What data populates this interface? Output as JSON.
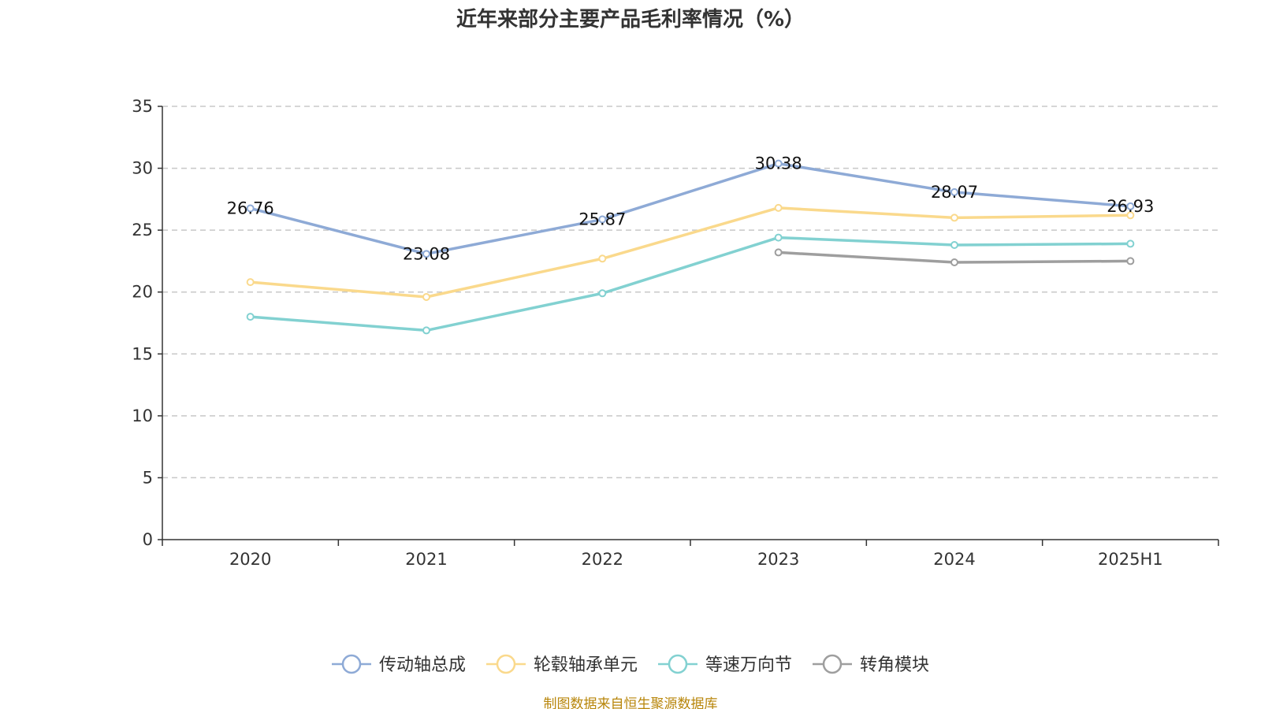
{
  "chart_data": {
    "type": "line",
    "title": "近年来部分主要产品毛利率情况（%）",
    "xlabel": "",
    "ylabel": "",
    "categories": [
      "2020",
      "2021",
      "2022",
      "2023",
      "2024",
      "2025H1"
    ],
    "ylim": [
      0,
      35
    ],
    "yticks": [
      0,
      5,
      10,
      15,
      20,
      25,
      30,
      35
    ],
    "grid": true,
    "legend_position": "bottom",
    "series": [
      {
        "name": "传动轴总成",
        "color": "#8eaad6",
        "values": [
          26.76,
          23.08,
          25.87,
          30.38,
          28.07,
          26.93
        ],
        "labels": [
          "26.76",
          "23.08",
          "25.87",
          "30.38",
          "28.07",
          "26.93"
        ]
      },
      {
        "name": "轮毂轴承单元",
        "color": "#fad98c",
        "values": [
          20.8,
          19.6,
          22.7,
          26.8,
          26.0,
          26.2
        ]
      },
      {
        "name": "等速万向节",
        "color": "#82d1d1",
        "values": [
          18.0,
          16.9,
          19.9,
          24.4,
          23.8,
          23.9
        ]
      },
      {
        "name": "转角模块",
        "color": "#9e9e9e",
        "values": [
          null,
          null,
          null,
          23.2,
          22.4,
          22.5
        ]
      }
    ]
  },
  "footer": {
    "source": "制图数据来自恒生聚源数据库"
  }
}
